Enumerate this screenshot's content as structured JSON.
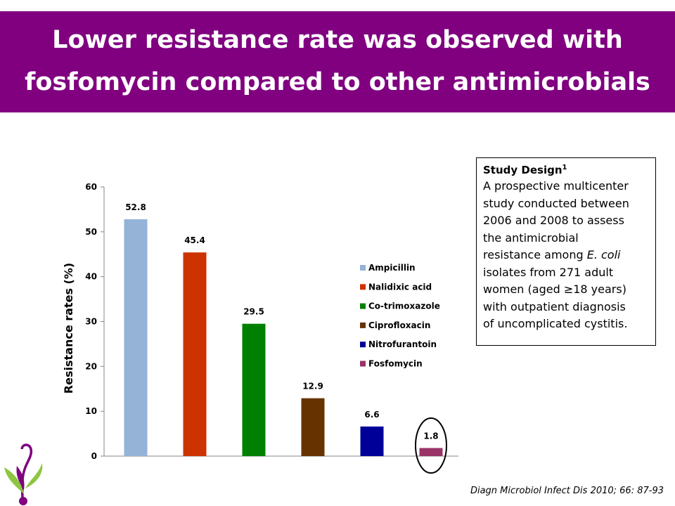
{
  "slide": {
    "title_line1": "Lower resistance rate was observed with",
    "title_line2": "fosfomycin compared to other antimicrobials",
    "title_bg_color": "#800080"
  },
  "chart_data": {
    "type": "bar",
    "categories": [
      "Ampicillin",
      "Nalidixic acid",
      "Co-trimoxazole",
      "Ciprofloxacin",
      "Nitrofurantoin",
      "Fosfomycin"
    ],
    "values": [
      52.8,
      45.4,
      29.5,
      12.9,
      6.6,
      1.8
    ],
    "value_labels": [
      "52.8",
      "45.4",
      "29.5",
      "12.9",
      "6.6",
      "1.8"
    ],
    "colors": [
      "#95B3D7",
      "#CC3300",
      "#008000",
      "#663300",
      "#000099",
      "#993366"
    ],
    "ylabel": "Resistance rates (%)",
    "ylim": [
      0,
      60
    ],
    "yticks": [
      0,
      10,
      20,
      30,
      40,
      50,
      60
    ],
    "grid": false,
    "legend": "right",
    "highlight": "Fosfomycin"
  },
  "study_design": {
    "title": "Study Design",
    "superscript": "1",
    "lines": [
      "A prospective multicenter",
      "study conducted between",
      "2006 and 2008 to assess",
      "the antimicrobial",
      "resistance among",
      "isolates from 271 adult",
      "women (aged ≥18 years)",
      "with outpatient diagnosis",
      "of uncomplicated cystitis."
    ],
    "organism": "E. coli"
  },
  "citation": "Diagn Microbiol Infect Dis 2010; 66: 87-93",
  "logo": {
    "icon": "plant-logo-icon",
    "colors": [
      "#800080",
      "#8DC63F"
    ]
  }
}
